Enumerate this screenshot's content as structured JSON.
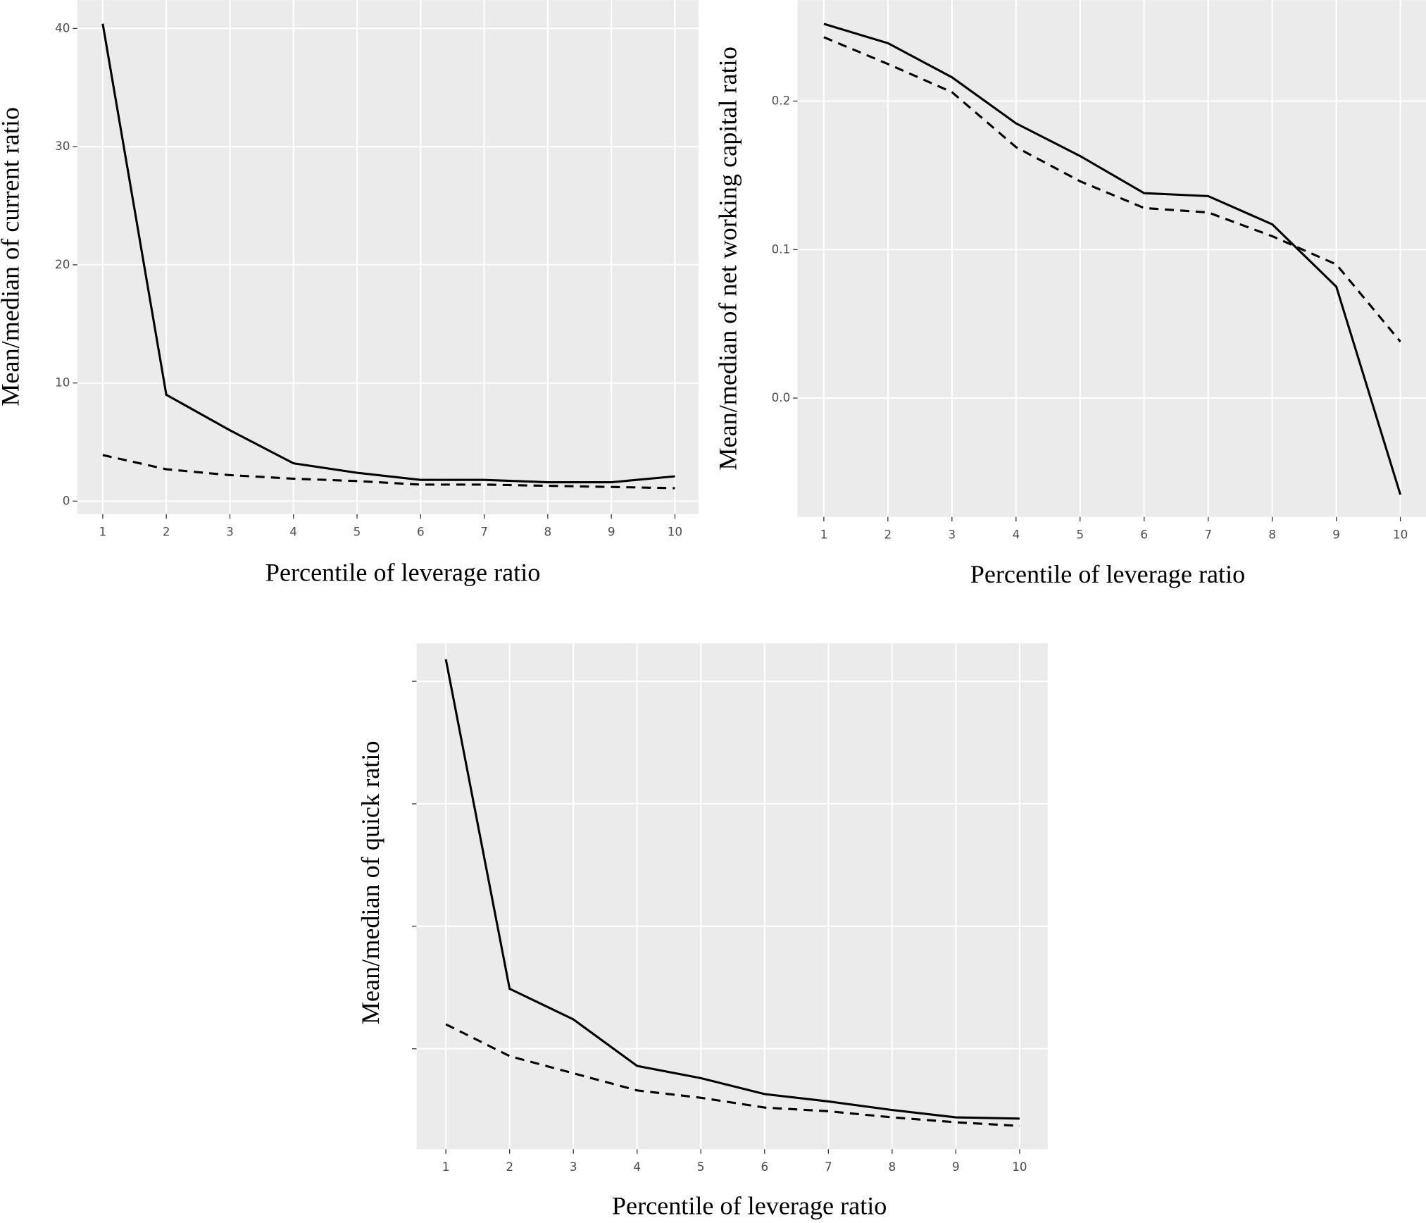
{
  "chart_data": [
    {
      "type": "line",
      "x_label": "Percentile of leverage ratio",
      "y_label": "Mean/median of current ratio",
      "x": [
        1,
        2,
        3,
        4,
        5,
        6,
        7,
        8,
        9,
        10
      ],
      "xlim": [
        0.6,
        10.37
      ],
      "xticks": [
        1,
        2,
        3,
        4,
        5,
        6,
        7,
        8,
        9,
        10
      ],
      "ylim": [
        -1.1,
        42.4
      ],
      "yticks": [
        0,
        10,
        20,
        30,
        40
      ],
      "ytick_labels": true,
      "grid": true,
      "series": [
        {
          "color": "#000000",
          "linestyle": "solid",
          "values": [
            40.4,
            9.0,
            6.0,
            3.2,
            2.4,
            1.8,
            1.8,
            1.6,
            1.6,
            2.1
          ]
        },
        {
          "color": "#000000",
          "linestyle": "dashed",
          "values": [
            3.9,
            2.7,
            2.2,
            1.9,
            1.7,
            1.4,
            1.4,
            1.3,
            1.2,
            1.1
          ]
        }
      ]
    },
    {
      "type": "line",
      "x_label": "Percentile of leverage ratio",
      "y_label": "Mean/median of net working capital ratio",
      "x": [
        1,
        2,
        3,
        4,
        5,
        6,
        7,
        8,
        9,
        10
      ],
      "xlim": [
        0.59,
        10.4
      ],
      "xticks": [
        1,
        2,
        3,
        4,
        5,
        6,
        7,
        8,
        9,
        10
      ],
      "ylim": [
        -0.08,
        0.268
      ],
      "yticks": [
        {
          "value": 0,
          "label": "0.0"
        },
        0.1,
        0.2
      ],
      "ytick_labels": true,
      "grid": true,
      "series": [
        {
          "color": "#000000",
          "linestyle": "solid",
          "values": [
            0.252,
            0.239,
            0.216,
            0.185,
            0.163,
            0.138,
            0.136,
            0.117,
            0.075,
            -0.065
          ]
        },
        {
          "color": "#000000",
          "linestyle": "dashed",
          "values": [
            0.243,
            0.225,
            0.206,
            0.169,
            0.146,
            0.128,
            0.125,
            0.109,
            0.09,
            0.038
          ]
        }
      ]
    },
    {
      "type": "line",
      "x_label": "Percentile of leverage ratio",
      "y_label": "Mean/median of quick ratio",
      "x": [
        1,
        2,
        3,
        4,
        5,
        6,
        7,
        8,
        9,
        10
      ],
      "xlim": [
        0.54,
        10.44
      ],
      "xticks": [
        1,
        2,
        3,
        4,
        5,
        6,
        7,
        8,
        9,
        10
      ],
      "ylim": [
        1.8,
        43.1
      ],
      "yticks": [
        10,
        20,
        30,
        40
      ],
      "ytick_labels": false,
      "grid": true,
      "series": [
        {
          "color": "#000000",
          "linestyle": "solid",
          "values": [
            41.8,
            14.9,
            12.4,
            8.6,
            7.6,
            6.3,
            5.7,
            5.0,
            4.4,
            4.3
          ]
        },
        {
          "color": "#000000",
          "linestyle": "dashed",
          "values": [
            12.0,
            9.4,
            8.0,
            6.6,
            6.0,
            5.2,
            4.9,
            4.4,
            4.0,
            3.7
          ]
        }
      ]
    }
  ]
}
